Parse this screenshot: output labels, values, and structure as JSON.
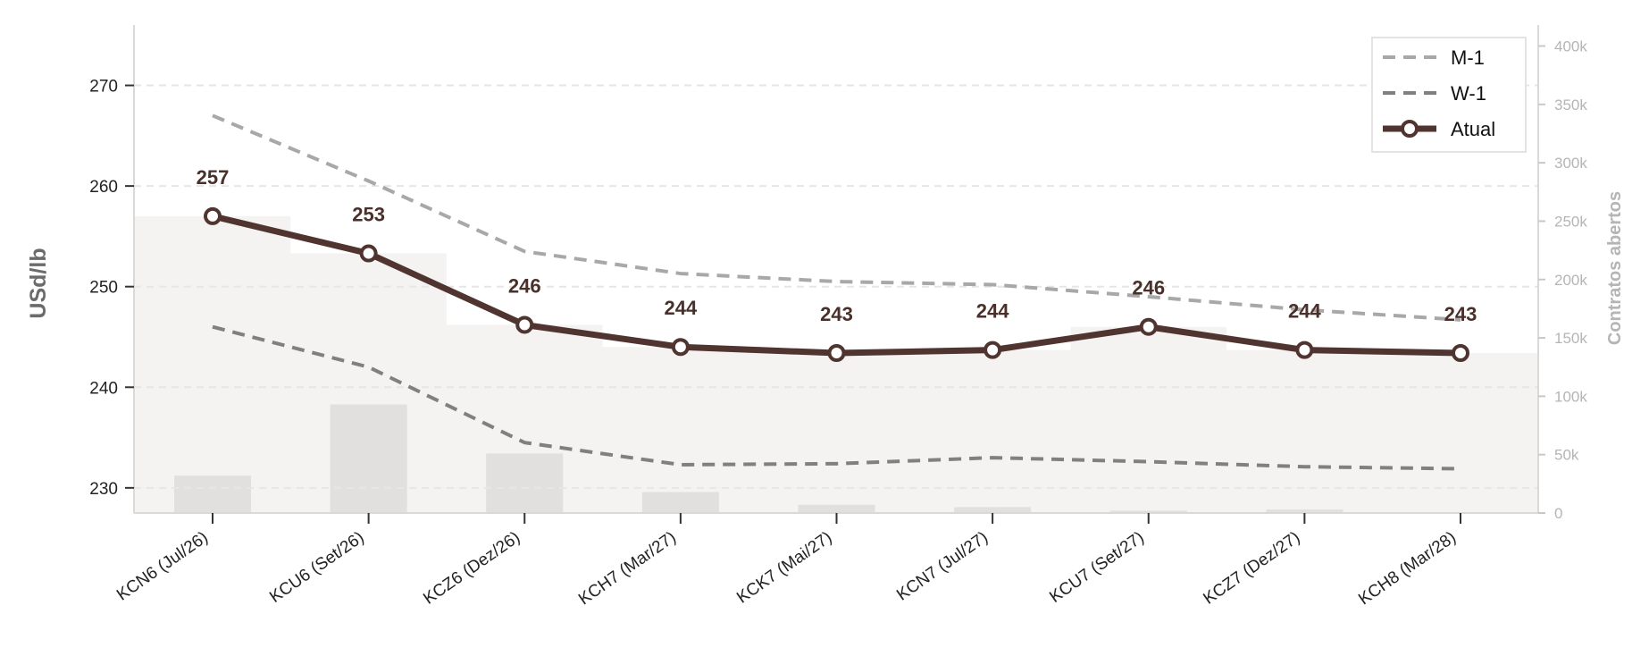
{
  "chart_data": {
    "type": "line",
    "categories": [
      "KCN6 (Jul/26)",
      "KCU6 (Set/26)",
      "KCZ6 (Dez/26)",
      "KCH7 (Mar/27)",
      "KCK7 (Mai/27)",
      "KCN7 (Jul/27)",
      "KCU7 (Set/27)",
      "KCZ7 (Dez/27)",
      "KCH8 (Mar/28)"
    ],
    "ylabel": "USd/lb",
    "y2label": "Contratos abertos",
    "ylim": [
      227.5,
      276
    ],
    "y2lim": [
      0,
      418000
    ],
    "yticks": [
      230,
      240,
      250,
      260,
      270
    ],
    "y2ticks": [
      0,
      50000,
      100000,
      150000,
      200000,
      250000,
      300000,
      350000,
      400000
    ],
    "y2tick_labels": [
      "0",
      "50k",
      "100k",
      "150k",
      "200k",
      "250k",
      "300k",
      "350k",
      "400k"
    ],
    "grid": "horizontal-dashed",
    "legend_position": "top-right",
    "series": [
      {
        "name": "M-1",
        "style": "dashed",
        "color": "#a8a8a8",
        "values": [
          267.0,
          260.5,
          253.5,
          251.3,
          250.5,
          250.2,
          249.0,
          247.7,
          246.7
        ]
      },
      {
        "name": "W-1",
        "style": "dashed",
        "color": "#808080",
        "values": [
          246.0,
          242.0,
          234.5,
          232.3,
          232.4,
          233.0,
          232.6,
          232.1,
          231.9
        ]
      },
      {
        "name": "Atual",
        "style": "solid-markers",
        "color": "#4f3430",
        "values": [
          257.0,
          253.3,
          246.2,
          244.0,
          243.4,
          243.7,
          246.0,
          243.7,
          243.4
        ],
        "labels": [
          "257",
          "253",
          "246",
          "244",
          "243",
          "244",
          "246",
          "244",
          "243"
        ]
      }
    ],
    "open_interest": {
      "color": "#e2e0de",
      "values": [
        32000,
        93000,
        51000,
        18000,
        7000,
        5000,
        2000,
        3000,
        0
      ]
    },
    "background_band": {
      "color": "#f4f3f2",
      "values": [
        257.0,
        253.3,
        246.2,
        244.0,
        243.4,
        243.7,
        246.0,
        243.7,
        243.4
      ]
    }
  }
}
